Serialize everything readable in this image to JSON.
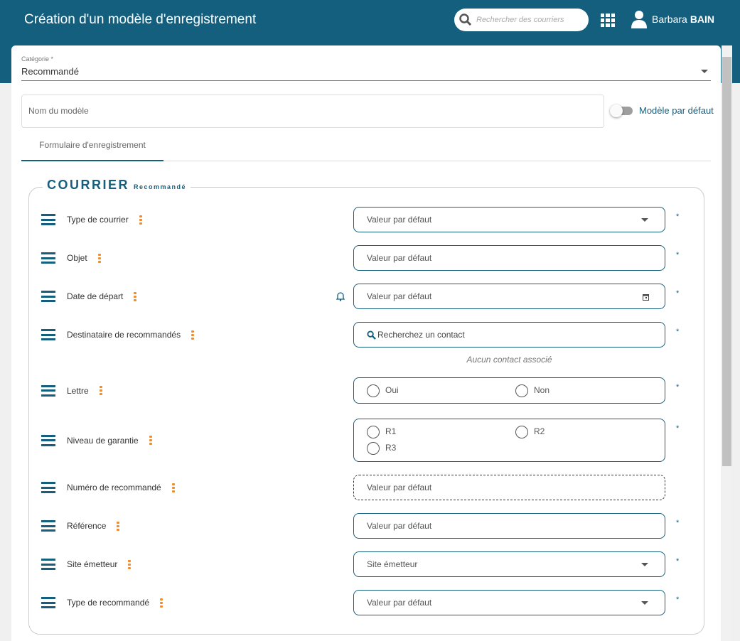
{
  "header": {
    "title": "Création d'un modèle d'enregistrement",
    "search_placeholder": "Rechercher des courriers",
    "user_first": "Barbara",
    "user_last": "BAIN"
  },
  "form": {
    "category_label": "Catégorie *",
    "category_value": "Recommandé",
    "name_placeholder": "Nom du modèle",
    "default_toggle_label": "Modèle par défaut",
    "default_toggle_on": false,
    "tab": "Formulaire d'enregistrement"
  },
  "section": {
    "title": "COURRIER",
    "subtitle": "Recommandé"
  },
  "fields": [
    {
      "label": "Type de courrier",
      "placeholder": "Valeur par défaut",
      "required": "*"
    },
    {
      "label": "Objet",
      "placeholder": "Valeur par défaut",
      "required": "*"
    },
    {
      "label": "Date de départ",
      "placeholder": "Valeur par défaut",
      "required": "*"
    },
    {
      "label": "Destinataire de recommandés",
      "placeholder": "Recherchez un contact",
      "required": "*",
      "note": "Aucun contact associé"
    },
    {
      "label": "Lettre",
      "options": [
        "Oui",
        "Non"
      ],
      "required": "*"
    },
    {
      "label": "Niveau de garantie",
      "options": [
        "R1",
        "R2",
        "R3"
      ],
      "required": "*"
    },
    {
      "label": "Numéro de recommandé",
      "placeholder": "Valeur par défaut"
    },
    {
      "label": "Référence",
      "placeholder": "Valeur par défaut",
      "required": "*"
    },
    {
      "label": "Site émetteur",
      "placeholder": "Site émetteur",
      "required": "*"
    },
    {
      "label": "Type de recommandé",
      "placeholder": "Valeur par défaut",
      "required": "*"
    }
  ]
}
